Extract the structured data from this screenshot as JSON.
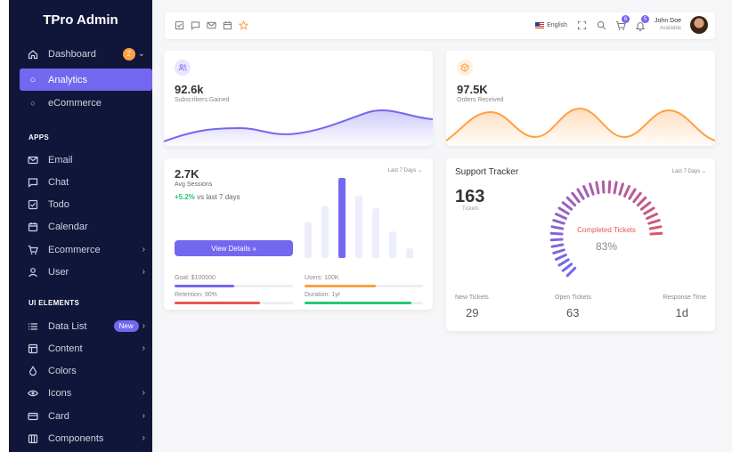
{
  "brand": "TPro Admin",
  "sidebar": {
    "dashboard": {
      "label": "Dashboard",
      "badge": "2"
    },
    "analytics": "Analytics",
    "ecommerce_sub": "eCommerce",
    "apps_title": "APPS",
    "apps": [
      "Email",
      "Chat",
      "Todo",
      "Calendar",
      "Ecommerce",
      "User"
    ],
    "ui_title": "UI ELEMENTS",
    "ui": [
      "Data List",
      "Content",
      "Colors",
      "Icons",
      "Card",
      "Components"
    ],
    "new_badge": "New"
  },
  "topbar": {
    "language": "English",
    "cart_count": "6",
    "bell_count": "5",
    "user_name": "John Doe",
    "user_status": "Available"
  },
  "subscribers": {
    "value": "92.6k",
    "label": "Subscribers Gained",
    "color": "#7367f0"
  },
  "orders": {
    "value": "97.5K",
    "label": "Orders Received",
    "color": "#ff9f43"
  },
  "sessions": {
    "value": "2.7K",
    "label": "Avg Sessions",
    "change": "+5.2%",
    "change_rest": " vs last 7 days",
    "period": "Last 7 Days",
    "button": "View Details »",
    "bars": [
      0.45,
      0.65,
      1.0,
      0.78,
      0.62,
      0.33,
      0.12
    ],
    "goal": "Goal: $100000",
    "users": "Users: 100K",
    "retention": "Retention: 90%",
    "duration": "Duration: 1yr",
    "goal_progress": 0.5,
    "users_progress": 0.6,
    "retention_progress": 0.72,
    "duration_progress": 0.9
  },
  "support": {
    "title": "Support Tracker",
    "period": "Last 7 Days",
    "tickets": "163",
    "tickets_label": "Tickets",
    "completed_label": "Completed Tickets",
    "completed_pct": "83%",
    "completed_fraction": 0.83,
    "new_label": "New Tickets",
    "new_value": "29",
    "open_label": "Open Tickets",
    "open_value": "63",
    "response_label": "Response Time",
    "response_value": "1d"
  }
}
